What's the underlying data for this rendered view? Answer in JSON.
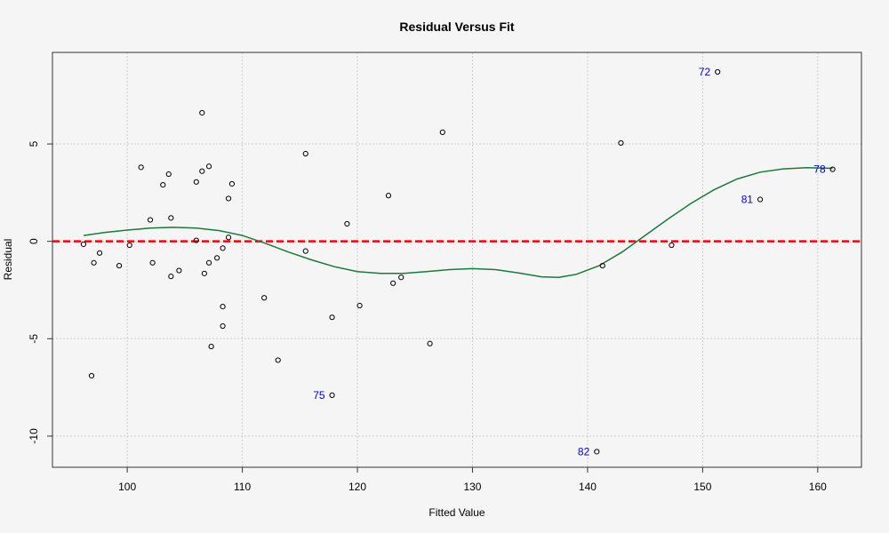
{
  "chart_data": {
    "type": "scatter",
    "title": "Residual Versus Fit",
    "xlabel": "Fitted Value",
    "ylabel": "Residual",
    "xlim": [
      93.5,
      163.8
    ],
    "ylim": [
      -11.6,
      9.7
    ],
    "xticks": [
      100,
      110,
      120,
      130,
      140,
      150,
      160
    ],
    "yticks": [
      -10,
      -5,
      0,
      5
    ],
    "grid": true,
    "colors": {
      "points": "#000000",
      "reference_line": "#ff0000",
      "smooth_line": "#1a7a3a",
      "annotation": "#0000cc",
      "grid": "#cccccc",
      "background": "#f5f5f5"
    },
    "reference_line": {
      "y": 0,
      "style": "dashed"
    },
    "points": [
      {
        "x": 96.2,
        "y": -0.15
      },
      {
        "x": 96.9,
        "y": -6.9
      },
      {
        "x": 97.1,
        "y": -1.1
      },
      {
        "x": 97.6,
        "y": -0.6
      },
      {
        "x": 99.3,
        "y": -1.25
      },
      {
        "x": 100.2,
        "y": -0.2
      },
      {
        "x": 101.2,
        "y": 3.8
      },
      {
        "x": 102.0,
        "y": 1.1
      },
      {
        "x": 102.2,
        "y": -1.1
      },
      {
        "x": 103.1,
        "y": 2.9
      },
      {
        "x": 103.6,
        "y": 3.45
      },
      {
        "x": 103.8,
        "y": 1.2
      },
      {
        "x": 103.8,
        "y": -1.8
      },
      {
        "x": 104.5,
        "y": -1.5
      },
      {
        "x": 106.0,
        "y": 3.05
      },
      {
        "x": 106.0,
        "y": 0.05
      },
      {
        "x": 106.5,
        "y": 6.6
      },
      {
        "x": 106.5,
        "y": 3.6
      },
      {
        "x": 106.7,
        "y": -1.65
      },
      {
        "x": 107.1,
        "y": 3.85
      },
      {
        "x": 107.1,
        "y": -1.1
      },
      {
        "x": 107.3,
        "y": -5.4
      },
      {
        "x": 107.8,
        "y": -0.85
      },
      {
        "x": 108.3,
        "y": -3.35
      },
      {
        "x": 108.3,
        "y": -4.35
      },
      {
        "x": 108.3,
        "y": -0.35
      },
      {
        "x": 108.8,
        "y": 2.2
      },
      {
        "x": 108.8,
        "y": 0.2
      },
      {
        "x": 109.1,
        "y": 2.95
      },
      {
        "x": 111.9,
        "y": -2.9
      },
      {
        "x": 113.1,
        "y": -6.1
      },
      {
        "x": 115.5,
        "y": 4.5
      },
      {
        "x": 115.5,
        "y": -0.5
      },
      {
        "x": 117.8,
        "y": -3.9
      },
      {
        "x": 117.8,
        "y": -7.9,
        "label": "75"
      },
      {
        "x": 119.1,
        "y": 0.9
      },
      {
        "x": 120.2,
        "y": -3.3
      },
      {
        "x": 122.7,
        "y": 2.35
      },
      {
        "x": 123.1,
        "y": -2.15
      },
      {
        "x": 123.8,
        "y": -1.85
      },
      {
        "x": 126.3,
        "y": -5.25
      },
      {
        "x": 127.4,
        "y": 5.6
      },
      {
        "x": 140.8,
        "y": -10.8,
        "label": "82"
      },
      {
        "x": 141.3,
        "y": -1.25
      },
      {
        "x": 142.9,
        "y": 5.05
      },
      {
        "x": 147.3,
        "y": -0.2
      },
      {
        "x": 151.3,
        "y": 8.7,
        "label": "72"
      },
      {
        "x": 155.0,
        "y": 2.15,
        "label": "81"
      },
      {
        "x": 161.3,
        "y": 3.7,
        "label": "78"
      }
    ],
    "smooth_curve": [
      [
        96.2,
        0.3
      ],
      [
        98,
        0.45
      ],
      [
        100,
        0.58
      ],
      [
        102,
        0.68
      ],
      [
        104,
        0.72
      ],
      [
        106,
        0.68
      ],
      [
        108,
        0.55
      ],
      [
        110,
        0.3
      ],
      [
        112,
        -0.1
      ],
      [
        114,
        -0.55
      ],
      [
        116,
        -0.95
      ],
      [
        118,
        -1.3
      ],
      [
        120,
        -1.55
      ],
      [
        122,
        -1.65
      ],
      [
        124,
        -1.65
      ],
      [
        126,
        -1.55
      ],
      [
        128,
        -1.45
      ],
      [
        130,
        -1.4
      ],
      [
        132,
        -1.45
      ],
      [
        134,
        -1.62
      ],
      [
        136,
        -1.82
      ],
      [
        137.5,
        -1.85
      ],
      [
        139,
        -1.7
      ],
      [
        141,
        -1.25
      ],
      [
        143,
        -0.55
      ],
      [
        145,
        0.3
      ],
      [
        147,
        1.15
      ],
      [
        149,
        1.95
      ],
      [
        151,
        2.65
      ],
      [
        153,
        3.2
      ],
      [
        155,
        3.55
      ],
      [
        157,
        3.72
      ],
      [
        159,
        3.78
      ],
      [
        161.3,
        3.75
      ]
    ]
  }
}
